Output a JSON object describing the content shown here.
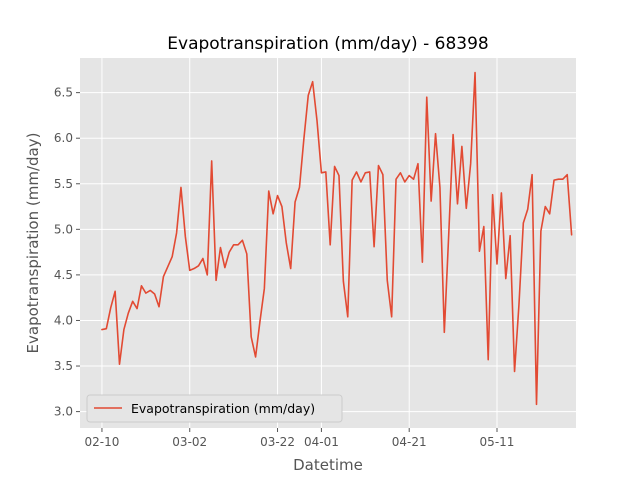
{
  "chart_data": {
    "type": "line",
    "title": "Evapotranspiration (mm/day) - 68398",
    "xlabel": "Datetime",
    "ylabel": "Evapotranspiration (mm/day)",
    "x_tick_labels": [
      "02-10",
      "03-02",
      "03-22",
      "04-01",
      "04-21",
      "05-11"
    ],
    "x_tick_dates": [
      "2023-02-10",
      "2023-03-02",
      "2023-03-22",
      "2023-04-01",
      "2023-04-21",
      "2023-05-11"
    ],
    "y_ticks": [
      3.0,
      3.5,
      4.0,
      4.5,
      5.0,
      5.5,
      6.0,
      6.5
    ],
    "y_tick_labels": [
      "3.0",
      "3.5",
      "4.0",
      "4.5",
      "5.0",
      "5.5",
      "6.0",
      "6.5"
    ],
    "xlim": [
      "2023-02-05",
      "2023-05-29"
    ],
    "ylim": [
      2.82,
      6.88
    ],
    "grid": true,
    "legend": "lower-left",
    "colors": {
      "line": "#E24A33",
      "axes_bg": "#E5E5E5",
      "grid": "#FFFFFF",
      "text": "#555555"
    },
    "series": [
      {
        "name": "Evapotranspiration (mm/day)",
        "x": [
          "2023-02-10",
          "2023-02-11",
          "2023-02-12",
          "2023-02-13",
          "2023-02-14",
          "2023-02-15",
          "2023-02-16",
          "2023-02-17",
          "2023-02-18",
          "2023-02-19",
          "2023-02-20",
          "2023-02-21",
          "2023-02-22",
          "2023-02-23",
          "2023-02-24",
          "2023-02-25",
          "2023-02-26",
          "2023-02-27",
          "2023-02-28",
          "2023-03-01",
          "2023-03-02",
          "2023-03-03",
          "2023-03-04",
          "2023-03-05",
          "2023-03-06",
          "2023-03-07",
          "2023-03-08",
          "2023-03-09",
          "2023-03-10",
          "2023-03-11",
          "2023-03-12",
          "2023-03-13",
          "2023-03-14",
          "2023-03-15",
          "2023-03-16",
          "2023-03-17",
          "2023-03-18",
          "2023-03-19",
          "2023-03-20",
          "2023-03-21",
          "2023-03-22",
          "2023-03-23",
          "2023-03-24",
          "2023-03-25",
          "2023-03-26",
          "2023-03-27",
          "2023-03-28",
          "2023-03-29",
          "2023-03-30",
          "2023-03-31",
          "2023-04-01",
          "2023-04-02",
          "2023-04-03",
          "2023-04-04",
          "2023-04-05",
          "2023-04-06",
          "2023-04-07",
          "2023-04-08",
          "2023-04-09",
          "2023-04-10",
          "2023-04-11",
          "2023-04-12",
          "2023-04-13",
          "2023-04-14",
          "2023-04-15",
          "2023-04-16",
          "2023-04-17",
          "2023-04-18",
          "2023-04-19",
          "2023-04-20",
          "2023-04-21",
          "2023-04-22",
          "2023-04-23",
          "2023-04-24",
          "2023-04-25",
          "2023-04-26",
          "2023-04-27",
          "2023-04-28",
          "2023-04-29",
          "2023-04-30",
          "2023-05-01",
          "2023-05-02",
          "2023-05-03",
          "2023-05-04",
          "2023-05-05",
          "2023-05-06",
          "2023-05-07",
          "2023-05-08",
          "2023-05-09",
          "2023-05-10",
          "2023-05-11",
          "2023-05-12",
          "2023-05-13",
          "2023-05-14",
          "2023-05-15",
          "2023-05-16",
          "2023-05-17",
          "2023-05-18",
          "2023-05-19",
          "2023-05-20",
          "2023-05-21",
          "2023-05-22",
          "2023-05-23",
          "2023-05-24",
          "2023-05-25",
          "2023-05-26",
          "2023-05-27",
          "2023-05-28"
        ],
        "y": [
          3.9,
          3.91,
          4.14,
          4.32,
          3.52,
          3.9,
          4.08,
          4.21,
          4.13,
          4.38,
          4.3,
          4.33,
          4.29,
          4.15,
          4.48,
          4.59,
          4.7,
          4.96,
          5.46,
          4.92,
          4.55,
          4.57,
          4.6,
          4.68,
          4.5,
          5.75,
          4.44,
          4.8,
          4.58,
          4.75,
          4.83,
          4.83,
          4.88,
          4.73,
          3.82,
          3.6,
          3.99,
          4.35,
          5.42,
          5.17,
          5.37,
          5.25,
          4.85,
          4.57,
          5.3,
          5.46,
          5.99,
          6.47,
          6.62,
          6.19,
          5.62,
          5.63,
          4.83,
          5.69,
          5.59,
          4.43,
          4.04,
          5.54,
          5.63,
          5.52,
          5.62,
          5.63,
          4.81,
          5.7,
          5.6,
          4.44,
          4.04,
          5.55,
          5.62,
          5.52,
          5.59,
          5.55,
          5.72,
          4.64,
          6.45,
          5.31,
          6.05,
          5.46,
          3.87,
          4.94,
          6.04,
          5.28,
          5.91,
          5.23,
          5.72,
          6.72,
          4.76,
          5.03,
          3.57,
          5.38,
          4.62,
          5.4,
          4.46,
          4.93,
          3.44,
          4.17,
          5.07,
          5.22,
          5.6,
          3.08,
          4.98,
          5.25,
          5.17,
          5.54,
          5.55,
          5.55,
          5.6,
          4.94
        ]
      }
    ]
  }
}
